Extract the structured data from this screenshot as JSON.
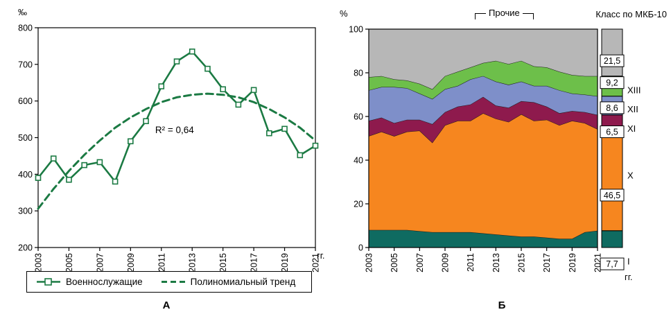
{
  "figure": {
    "panel_a_label": "А",
    "panel_b_label": "Б"
  },
  "panel_a": {
    "y_unit": "‰",
    "x_unit": "гг.",
    "legend": [
      {
        "name": "Военнослужащие"
      },
      {
        "name": "Полиномиальный тренд"
      }
    ]
  },
  "panel_b": {
    "y_unit": "%",
    "x_unit": "гг.",
    "others_label": "Прочие",
    "class_label": "Класс по МКБ-10"
  },
  "chart_data": [
    {
      "type": "line",
      "title": "",
      "x": [
        2003,
        2004,
        2005,
        2006,
        2007,
        2008,
        2009,
        2010,
        2011,
        2012,
        2013,
        2014,
        2015,
        2016,
        2017,
        2018,
        2019,
        2020,
        2021
      ],
      "series": [
        {
          "name": "Военнослужащие",
          "slug": "servicemen",
          "color": "#1b7a43",
          "marker": "square",
          "dashed": false,
          "values": [
            390,
            443,
            385,
            425,
            433,
            380,
            490,
            545,
            640,
            708,
            735,
            688,
            632,
            590,
            630,
            512,
            524,
            452,
            478
          ]
        },
        {
          "name": "Полиномиальный тренд",
          "slug": "trend",
          "color": "#1b7a43",
          "marker": "none",
          "dashed": true,
          "values": [
            306,
            360,
            409,
            453,
            492,
            527,
            555,
            578,
            597,
            610,
            617,
            620,
            617,
            610,
            597,
            578,
            555,
            527,
            492
          ]
        }
      ],
      "ylabel": "‰",
      "xlabel": "гг.",
      "ylim": [
        200,
        800
      ],
      "yticks": [
        200,
        300,
        400,
        500,
        600,
        700,
        800
      ],
      "xticks_labeled": [
        2003,
        2005,
        2007,
        2009,
        2011,
        2013,
        2015,
        2017,
        2019,
        2021
      ],
      "annotation": {
        "text": "R² = 0,64",
        "x": 2010.6,
        "y": 512
      },
      "grid": false,
      "legend_position": "bottom"
    },
    {
      "type": "area",
      "stacked": true,
      "units": "percent",
      "x": [
        2003,
        2004,
        2005,
        2006,
        2007,
        2008,
        2009,
        2010,
        2011,
        2012,
        2013,
        2014,
        2015,
        2016,
        2017,
        2018,
        2019,
        2020,
        2021
      ],
      "series": [
        {
          "name": "I",
          "slug": "i",
          "color": "#0f6b61",
          "values": [
            8,
            8,
            8,
            8,
            7.5,
            7,
            7,
            7,
            7,
            6.5,
            6,
            5.5,
            5,
            5,
            4.5,
            4,
            4,
            7,
            7.7
          ]
        },
        {
          "name": "X",
          "slug": "x",
          "color": "#f6861f",
          "values": [
            43,
            45,
            43,
            45,
            46,
            41,
            49,
            51,
            51,
            55,
            53,
            52,
            56,
            53,
            54,
            52,
            54,
            50,
            46.5
          ]
        },
        {
          "name": "XI",
          "slug": "xi",
          "color": "#8e1a4d",
          "values": [
            7,
            6.5,
            6,
            5.5,
            5,
            8.5,
            6,
            6.5,
            7.5,
            7.5,
            6,
            6.5,
            6,
            8.5,
            6,
            5.5,
            4.5,
            5,
            6.5
          ]
        },
        {
          "name": "XII",
          "slug": "xii",
          "color": "#7e8fc9",
          "values": [
            14,
            14,
            16.5,
            14.5,
            12,
            11.5,
            10.5,
            9.5,
            11.5,
            9.5,
            11,
            10.5,
            9,
            7.5,
            9.5,
            10.5,
            8,
            8,
            8.6
          ]
        },
        {
          "name": "XIII",
          "slug": "xiii",
          "color": "#6dbf4a",
          "values": [
            6,
            5,
            3.5,
            3.5,
            4.5,
            4.5,
            6,
            6.5,
            5.5,
            6,
            9.5,
            9.5,
            9.5,
            9,
            8.5,
            8.5,
            8.5,
            8.5,
            9.2
          ]
        },
        {
          "name": "Прочие",
          "slug": "others",
          "color": "#b7b7b7",
          "values": [
            22,
            21.5,
            23,
            23.5,
            25,
            27.5,
            21.5,
            19.5,
            17.5,
            15.5,
            14.5,
            16,
            14.5,
            17,
            17.5,
            19.5,
            21,
            21.5,
            21.5
          ]
        }
      ],
      "ylabel": "%",
      "xlabel": "гг.",
      "ylim": [
        0,
        100
      ],
      "yticks": [
        0,
        20,
        40,
        60,
        80,
        100
      ],
      "xticks_labeled": [
        2003,
        2005,
        2007,
        2009,
        2011,
        2013,
        2015,
        2017,
        2019,
        2021
      ],
      "right_bar": {
        "title": "Класс по МКБ-10",
        "others_bracket_label": "Прочие",
        "segments": [
          {
            "class": "I",
            "slug": "i",
            "label": "7,7",
            "value": 7.7,
            "color": "#0f6b61",
            "box_pct": -7.5,
            "numeral": "I",
            "numeral_pct": -6.3
          },
          {
            "class": "X",
            "slug": "x",
            "label": "46,5",
            "value": 46.5,
            "color": "#f6861f",
            "box_pct": 24,
            "numeral": "X",
            "numeral_pct": 33
          },
          {
            "class": "XI",
            "slug": "xi",
            "label": "6,5",
            "value": 6.5,
            "color": "#8e1a4d",
            "box_pct": 53,
            "numeral": "XI",
            "numeral_pct": 54.5
          },
          {
            "class": "XII",
            "slug": "xii",
            "label": "8,6",
            "value": 8.6,
            "color": "#7e8fc9",
            "box_pct": 64,
            "numeral": "XII",
            "numeral_pct": 63.3
          },
          {
            "class": "XIII",
            "slug": "xiii",
            "label": "9,2",
            "value": 9.2,
            "color": "#6dbf4a",
            "box_pct": 75.5,
            "numeral": "XIII",
            "numeral_pct": 72
          },
          {
            "class": "Прочие",
            "slug": "others",
            "label": "21,5",
            "value": 21.5,
            "color": "#b7b7b7",
            "box_pct": 85.5,
            "numeral": null
          }
        ]
      }
    }
  ]
}
